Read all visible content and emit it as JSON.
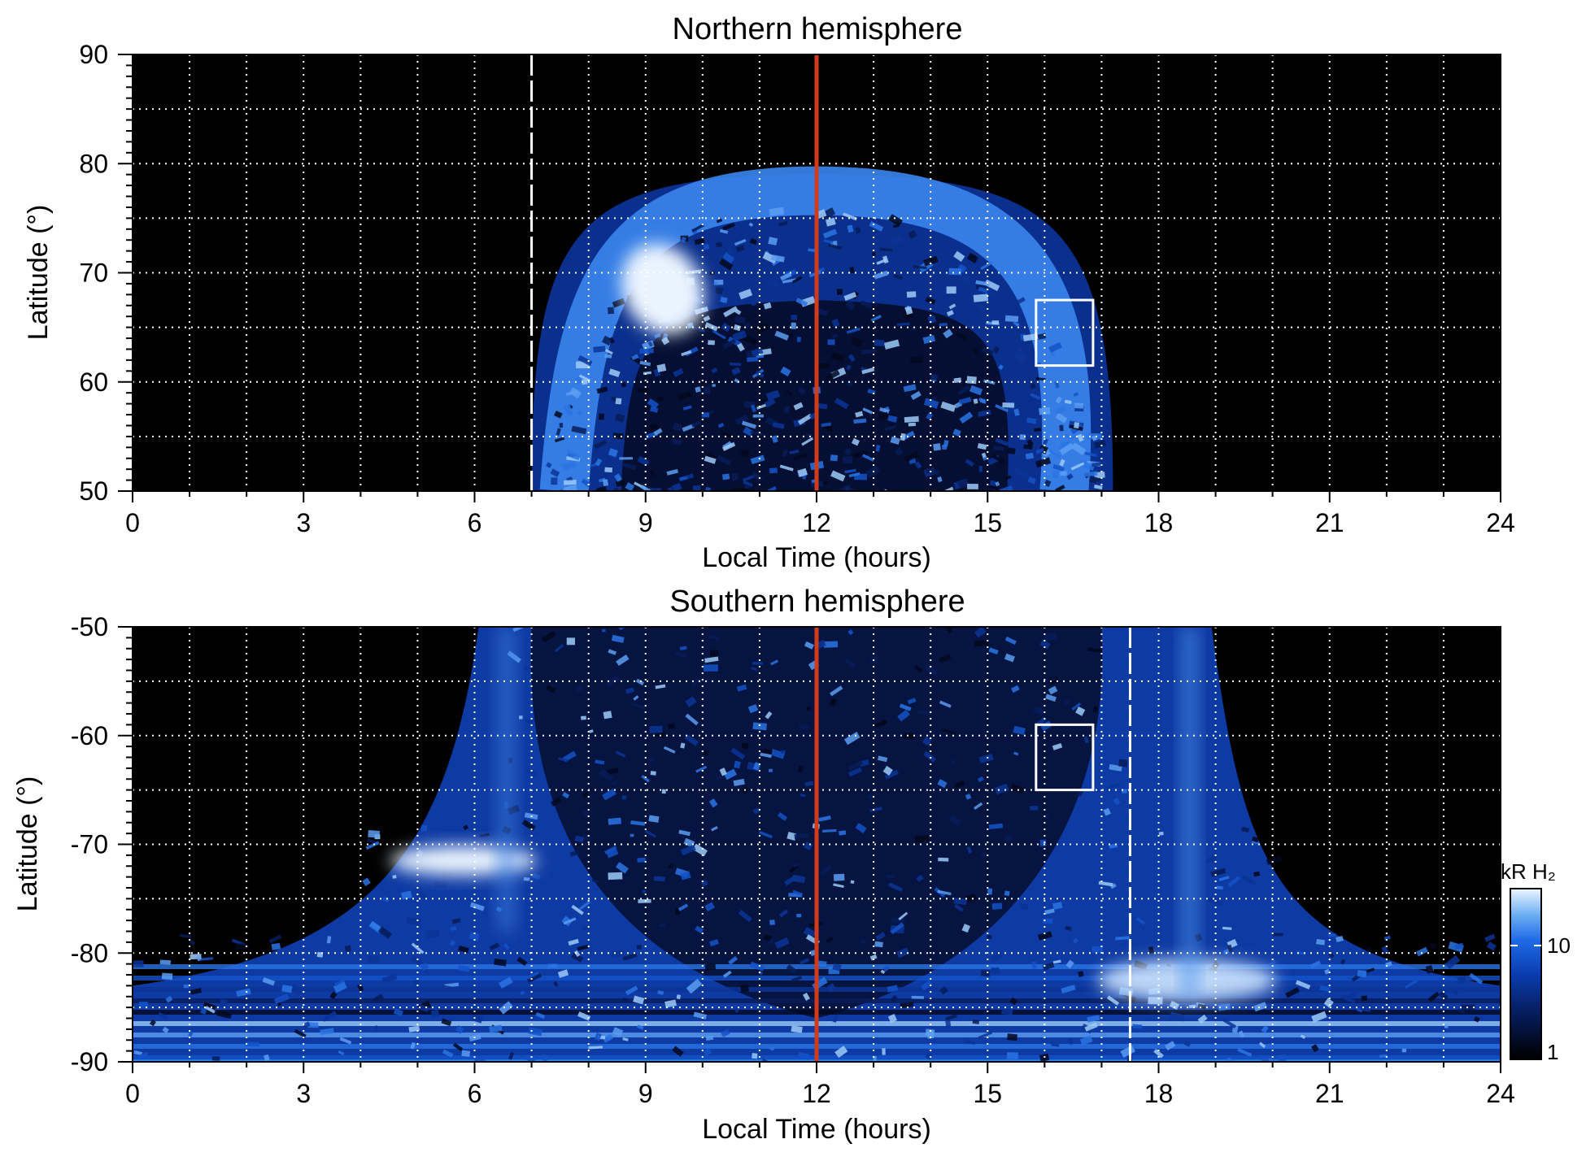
{
  "chart_data": [
    {
      "type": "heatmap",
      "title": "Northern hemisphere",
      "xlabel": "Local Time (hours)",
      "ylabel": "Latitude (°)",
      "xlim": [
        0,
        24
      ],
      "ylim": [
        50,
        90
      ],
      "xticks": [
        "0",
        "3",
        "6",
        "9",
        "12",
        "15",
        "18",
        "21",
        "24"
      ],
      "yticks": [
        "50",
        "60",
        "70",
        "80",
        "90"
      ],
      "grid": true,
      "vertical_lines": [
        {
          "x": 7,
          "color": "#ffffff",
          "style": "dashed"
        },
        {
          "x": 12,
          "color": "#d23a1a",
          "style": "solid"
        }
      ],
      "box": {
        "x": [
          15.85,
          16.85
        ],
        "y": [
          61.5,
          67.5
        ]
      },
      "emission_region": {
        "lt_range": [
          7,
          17.2
        ],
        "max_latitude": 79,
        "bright_oval_latitude": 70,
        "bright_spot": {
          "x": 9.3,
          "y": 68.5
        }
      }
    },
    {
      "type": "heatmap",
      "title": "Southern hemisphere",
      "xlabel": "Local Time (hours)",
      "ylabel": "Latitude (°)",
      "xlim": [
        0,
        24
      ],
      "ylim": [
        -90,
        -50
      ],
      "xticks": [
        "0",
        "3",
        "6",
        "9",
        "12",
        "15",
        "18",
        "21",
        "24"
      ],
      "yticks": [
        "-90",
        "-80",
        "-70",
        "-60",
        "-50"
      ],
      "grid": true,
      "vertical_lines": [
        {
          "x": 12,
          "color": "#d23a1a",
          "style": "solid"
        },
        {
          "x": 17.5,
          "color": "#ffffff",
          "style": "dashed"
        }
      ],
      "box": {
        "x": [
          15.85,
          16.85
        ],
        "y": [
          -65,
          -59
        ]
      },
      "emission_region": {
        "lt_range": [
          5.5,
          19.5
        ],
        "bright_spot": {
          "x": 5.8,
          "y": -71.5
        }
      }
    }
  ],
  "colorbar": {
    "label": "kR H₂",
    "ticks": [
      "10",
      "1"
    ],
    "scale": "log",
    "colors": [
      "#000000",
      "#061a55",
      "#0a3cb0",
      "#1f6ce6",
      "#6fb0f5",
      "#eef6ff"
    ]
  }
}
